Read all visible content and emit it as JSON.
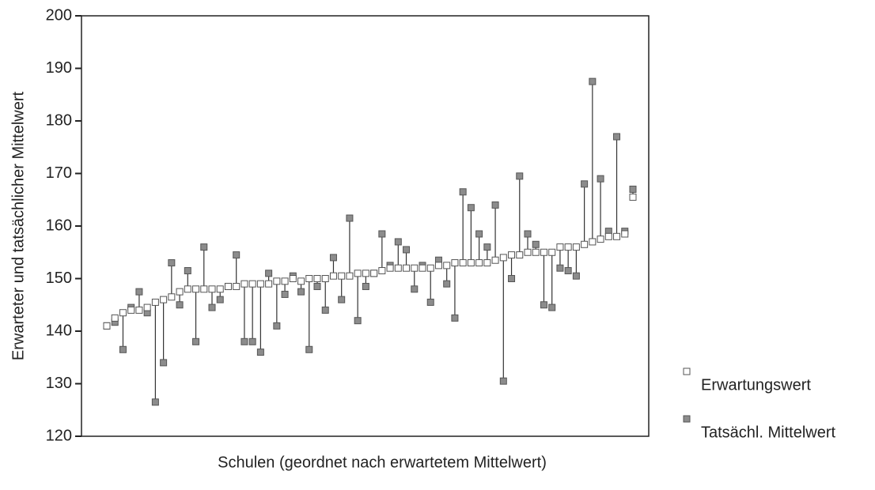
{
  "chart_data": {
    "type": "dropline",
    "y_label": "Erwarteter und tatsächlicher Mittelwert",
    "x_label": "Schulen (geordnet nach erwartetem Mittelwert)",
    "categories": [
      null,
      null,
      null,
      null,
      null,
      null,
      null,
      null,
      null,
      null,
      null,
      null,
      null,
      null,
      null,
      null,
      null,
      null,
      null,
      null,
      null,
      null,
      null,
      null,
      null,
      null,
      null,
      null,
      null,
      null,
      null,
      null,
      null,
      null,
      null,
      null,
      null,
      null,
      null,
      null,
      null,
      null,
      null,
      null,
      null,
      null,
      null,
      null,
      null,
      null,
      null,
      null,
      null,
      null,
      null,
      null,
      null,
      null,
      null,
      null,
      null,
      null,
      null,
      null,
      null,
      null
    ],
    "series": [
      {
        "name": "Erwartungswert",
        "color": "#ffffff",
        "values": [
          141,
          142.5,
          143.5,
          144,
          144,
          144.5,
          145.5,
          146,
          146.5,
          147.5,
          148,
          148,
          148,
          148,
          148,
          148.5,
          148.5,
          149,
          149,
          149,
          149,
          149.5,
          149.5,
          150,
          149.5,
          150,
          150,
          150,
          150.5,
          150.5,
          150.5,
          151,
          151,
          151,
          151.5,
          152,
          152,
          152,
          152,
          152,
          152,
          152.5,
          152.5,
          153,
          153,
          153,
          153,
          153,
          153.5,
          154,
          154.5,
          154.5,
          155,
          155,
          155,
          155,
          156,
          156,
          156,
          156.5,
          157,
          157.5,
          158,
          158,
          158.5,
          165.5
        ]
      },
      {
        "name": "Tatsächl. Mittelwert",
        "color": "#8c8c8c",
        "values": [
          141,
          141.7,
          136.5,
          144.5,
          147.5,
          143.5,
          126.5,
          134,
          153,
          145,
          151.5,
          138,
          156,
          144.5,
          146,
          148.5,
          154.5,
          138,
          138,
          136,
          151,
          141,
          147,
          150.5,
          147.5,
          136.5,
          148.5,
          144,
          154,
          146,
          161.5,
          142,
          148.5,
          151,
          158.5,
          152.5,
          157,
          155.5,
          148,
          152.5,
          145.5,
          153.5,
          149,
          142.5,
          166.5,
          163.5,
          158.5,
          156,
          164,
          130.5,
          150,
          169.5,
          158.5,
          156.5,
          145,
          144.5,
          152,
          151.5,
          150.5,
          168,
          187.5,
          169,
          159,
          177,
          159,
          167
        ]
      }
    ],
    "ylim": [
      120,
      200
    ],
    "yticks": [
      120,
      130,
      140,
      150,
      160,
      170,
      180,
      190,
      200
    ]
  }
}
